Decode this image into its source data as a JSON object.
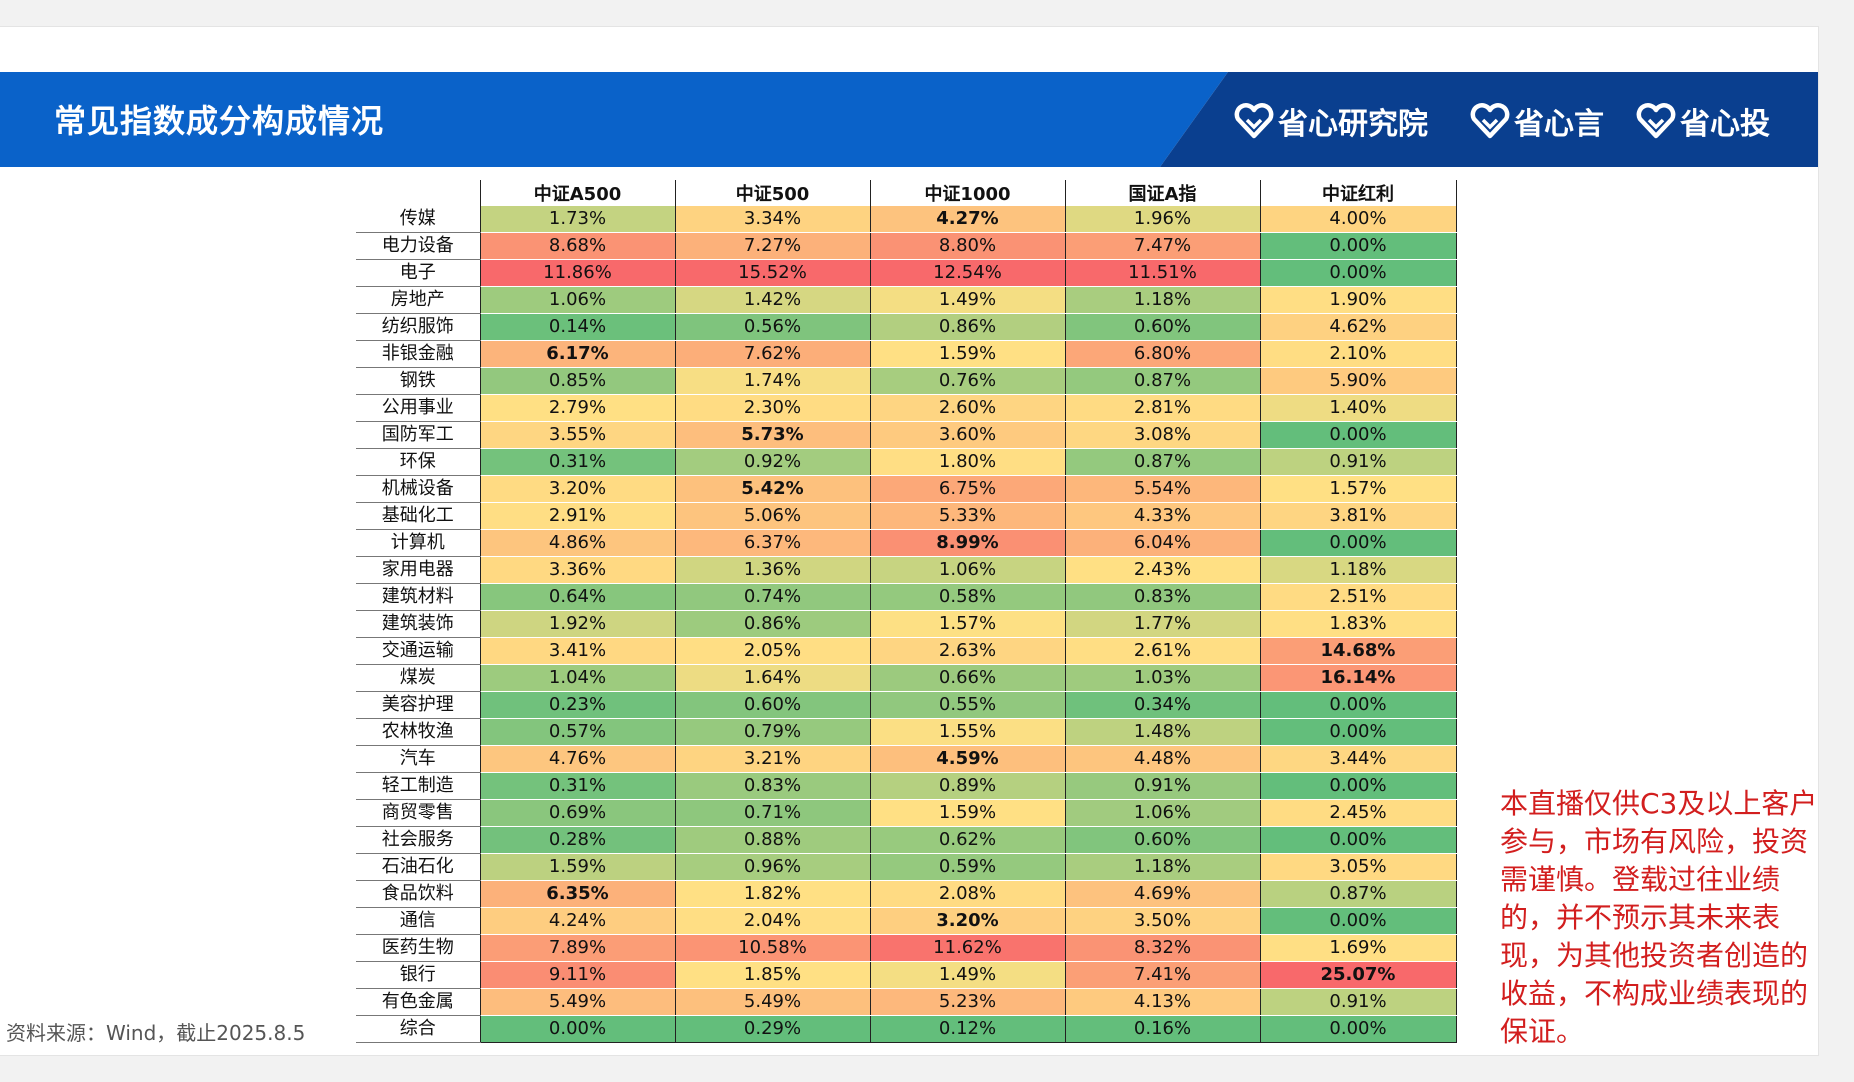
{
  "title": "常见指数成分构成情况",
  "brands": [
    "省心研究院",
    "省心言",
    "省心投"
  ],
  "colors": {
    "banner": "#0a62c9",
    "banner_dark": "#0a3f8f",
    "scale_low": "#63be7b",
    "scale_mid": "#ffe084",
    "scale_high": "#f8696b",
    "disclaimer": "#d21e1e"
  },
  "table": {
    "columns": [
      "中证A500",
      "中证500",
      "中证1000",
      "国证A指",
      "中证红利"
    ],
    "rows": [
      {
        "industry": "传媒",
        "values": [
          "1.73%",
          "3.34%",
          "4.27%",
          "1.96%",
          "4.00%"
        ],
        "bold": [
          false,
          false,
          true,
          false,
          false
        ]
      },
      {
        "industry": "电力设备",
        "values": [
          "8.68%",
          "7.27%",
          "8.80%",
          "7.47%",
          "0.00%"
        ],
        "bold": [
          false,
          false,
          false,
          false,
          false
        ]
      },
      {
        "industry": "电子",
        "values": [
          "11.86%",
          "15.52%",
          "12.54%",
          "11.51%",
          "0.00%"
        ],
        "bold": [
          false,
          false,
          false,
          false,
          false
        ]
      },
      {
        "industry": "房地产",
        "values": [
          "1.06%",
          "1.42%",
          "1.49%",
          "1.18%",
          "1.90%"
        ],
        "bold": [
          false,
          false,
          false,
          false,
          false
        ]
      },
      {
        "industry": "纺织服饰",
        "values": [
          "0.14%",
          "0.56%",
          "0.86%",
          "0.60%",
          "4.62%"
        ],
        "bold": [
          false,
          false,
          false,
          false,
          false
        ]
      },
      {
        "industry": "非银金融",
        "values": [
          "6.17%",
          "7.62%",
          "1.59%",
          "6.80%",
          "2.10%"
        ],
        "bold": [
          true,
          false,
          false,
          false,
          false
        ]
      },
      {
        "industry": "钢铁",
        "values": [
          "0.85%",
          "1.74%",
          "0.76%",
          "0.87%",
          "5.90%"
        ],
        "bold": [
          false,
          false,
          false,
          false,
          false
        ]
      },
      {
        "industry": "公用事业",
        "values": [
          "2.79%",
          "2.30%",
          "2.60%",
          "2.81%",
          "1.40%"
        ],
        "bold": [
          false,
          false,
          false,
          false,
          false
        ]
      },
      {
        "industry": "国防军工",
        "values": [
          "3.55%",
          "5.73%",
          "3.60%",
          "3.08%",
          "0.00%"
        ],
        "bold": [
          false,
          true,
          false,
          false,
          false
        ]
      },
      {
        "industry": "环保",
        "values": [
          "0.31%",
          "0.92%",
          "1.80%",
          "0.87%",
          "0.91%"
        ],
        "bold": [
          false,
          false,
          false,
          false,
          false
        ]
      },
      {
        "industry": "机械设备",
        "values": [
          "3.20%",
          "5.42%",
          "6.75%",
          "5.54%",
          "1.57%"
        ],
        "bold": [
          false,
          true,
          false,
          false,
          false
        ]
      },
      {
        "industry": "基础化工",
        "values": [
          "2.91%",
          "5.06%",
          "5.33%",
          "4.33%",
          "3.81%"
        ],
        "bold": [
          false,
          false,
          false,
          false,
          false
        ]
      },
      {
        "industry": "计算机",
        "values": [
          "4.86%",
          "6.37%",
          "8.99%",
          "6.04%",
          "0.00%"
        ],
        "bold": [
          false,
          false,
          true,
          false,
          false
        ]
      },
      {
        "industry": "家用电器",
        "values": [
          "3.36%",
          "1.36%",
          "1.06%",
          "2.43%",
          "1.18%"
        ],
        "bold": [
          false,
          false,
          false,
          false,
          false
        ]
      },
      {
        "industry": "建筑材料",
        "values": [
          "0.64%",
          "0.74%",
          "0.58%",
          "0.83%",
          "2.51%"
        ],
        "bold": [
          false,
          false,
          false,
          false,
          false
        ]
      },
      {
        "industry": "建筑装饰",
        "values": [
          "1.92%",
          "0.86%",
          "1.57%",
          "1.77%",
          "1.83%"
        ],
        "bold": [
          false,
          false,
          false,
          false,
          false
        ]
      },
      {
        "industry": "交通运输",
        "values": [
          "3.41%",
          "2.05%",
          "2.63%",
          "2.61%",
          "14.68%"
        ],
        "bold": [
          false,
          false,
          false,
          false,
          true
        ]
      },
      {
        "industry": "煤炭",
        "values": [
          "1.04%",
          "1.64%",
          "0.66%",
          "1.03%",
          "16.14%"
        ],
        "bold": [
          false,
          false,
          false,
          false,
          true
        ]
      },
      {
        "industry": "美容护理",
        "values": [
          "0.23%",
          "0.60%",
          "0.55%",
          "0.34%",
          "0.00%"
        ],
        "bold": [
          false,
          false,
          false,
          false,
          false
        ]
      },
      {
        "industry": "农林牧渔",
        "values": [
          "0.57%",
          "0.79%",
          "1.55%",
          "1.48%",
          "0.00%"
        ],
        "bold": [
          false,
          false,
          false,
          false,
          false
        ]
      },
      {
        "industry": "汽车",
        "values": [
          "4.76%",
          "3.21%",
          "4.59%",
          "4.48%",
          "3.44%"
        ],
        "bold": [
          false,
          false,
          true,
          false,
          false
        ]
      },
      {
        "industry": "轻工制造",
        "values": [
          "0.31%",
          "0.83%",
          "0.89%",
          "0.91%",
          "0.00%"
        ],
        "bold": [
          false,
          false,
          false,
          false,
          false
        ]
      },
      {
        "industry": "商贸零售",
        "values": [
          "0.69%",
          "0.71%",
          "1.59%",
          "1.06%",
          "2.45%"
        ],
        "bold": [
          false,
          false,
          false,
          false,
          false
        ]
      },
      {
        "industry": "社会服务",
        "values": [
          "0.28%",
          "0.88%",
          "0.62%",
          "0.60%",
          "0.00%"
        ],
        "bold": [
          false,
          false,
          false,
          false,
          false
        ]
      },
      {
        "industry": "石油石化",
        "values": [
          "1.59%",
          "0.96%",
          "0.59%",
          "1.18%",
          "3.05%"
        ],
        "bold": [
          false,
          false,
          false,
          false,
          false
        ]
      },
      {
        "industry": "食品饮料",
        "values": [
          "6.35%",
          "1.82%",
          "2.08%",
          "4.69%",
          "0.87%"
        ],
        "bold": [
          true,
          false,
          false,
          false,
          false
        ]
      },
      {
        "industry": "通信",
        "values": [
          "4.24%",
          "2.04%",
          "3.20%",
          "3.50%",
          "0.00%"
        ],
        "bold": [
          false,
          false,
          true,
          false,
          false
        ]
      },
      {
        "industry": "医药生物",
        "values": [
          "7.89%",
          "10.58%",
          "11.62%",
          "8.32%",
          "1.69%"
        ],
        "bold": [
          false,
          false,
          false,
          false,
          false
        ]
      },
      {
        "industry": "银行",
        "values": [
          "9.11%",
          "1.85%",
          "1.49%",
          "7.41%",
          "25.07%"
        ],
        "bold": [
          false,
          false,
          false,
          false,
          true
        ]
      },
      {
        "industry": "有色金属",
        "values": [
          "5.49%",
          "5.49%",
          "5.23%",
          "4.13%",
          "0.91%"
        ],
        "bold": [
          false,
          false,
          false,
          false,
          false
        ]
      },
      {
        "industry": "综合",
        "values": [
          "0.00%",
          "0.29%",
          "0.12%",
          "0.16%",
          "0.00%"
        ],
        "bold": [
          false,
          false,
          false,
          false,
          false
        ]
      }
    ]
  },
  "source": "资料来源：Wind，截止2025.8.5",
  "disclaimer": "本直播仅供C3及以上客户参与，市场有风险，投资需谨慎。登载过往业绩的，并不预示其未来表现，为其他投资者创造的收益，不构成业绩表现的保证。"
}
